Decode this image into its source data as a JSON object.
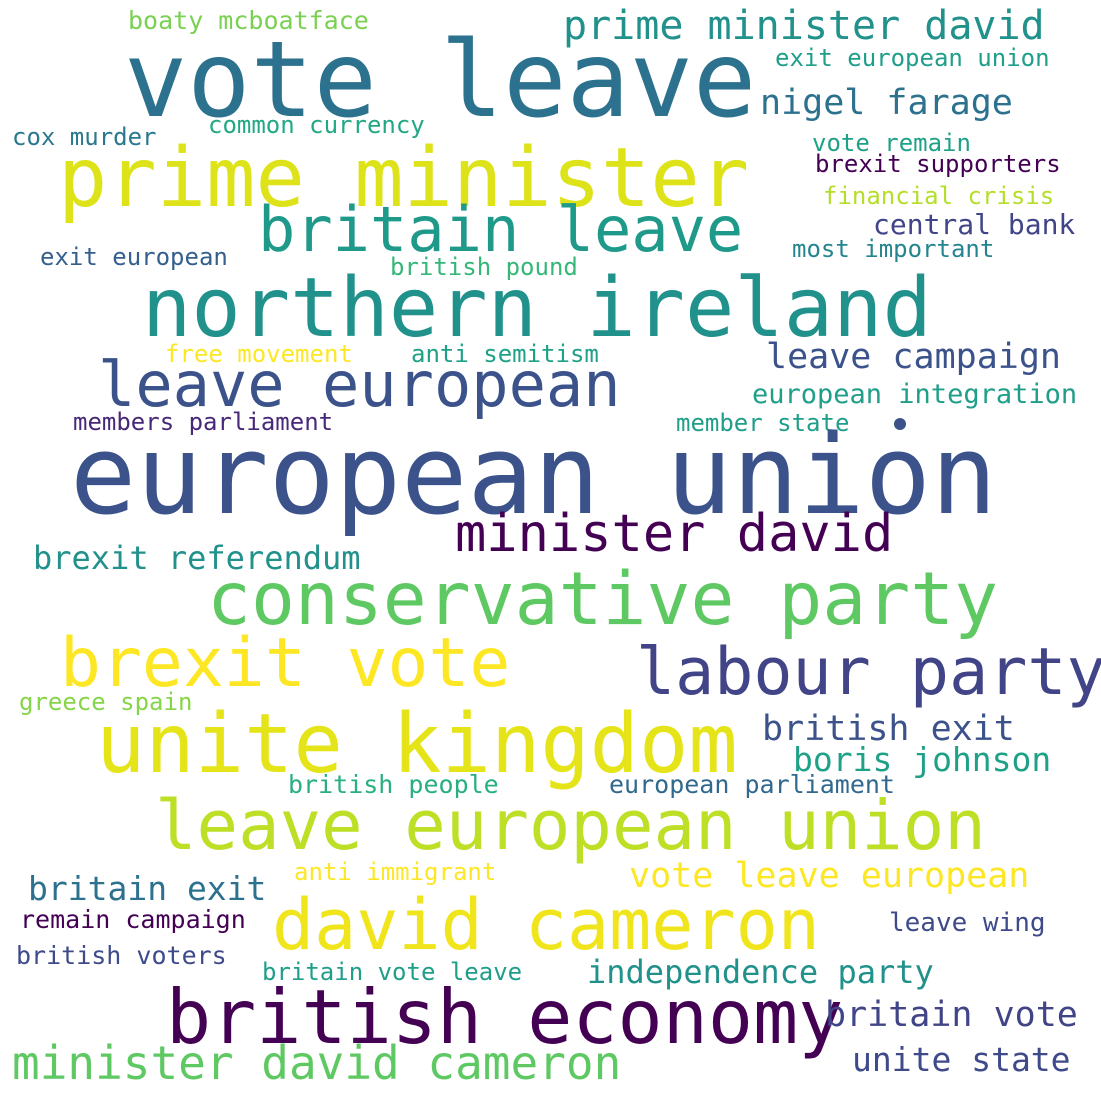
{
  "words": [
    {
      "id": "w00",
      "text": "boaty mcboatface",
      "color": "#7ad151"
    },
    {
      "id": "w01",
      "text": "vote leave",
      "color": "#2c728e"
    },
    {
      "id": "w02",
      "text": "prime minister david",
      "color": "#21918c"
    },
    {
      "id": "w03",
      "text": "exit european union",
      "color": "#1f9e89"
    },
    {
      "id": "w04",
      "text": "nigel farage",
      "color": "#2c728e"
    },
    {
      "id": "w05",
      "text": "cox murder",
      "color": "#2a788e"
    },
    {
      "id": "w06",
      "text": "common currency",
      "color": "#22a884"
    },
    {
      "id": "w07",
      "text": "vote remain",
      "color": "#1fa187"
    },
    {
      "id": "w08",
      "text": "prime minister",
      "color": "#dde318"
    },
    {
      "id": "w09",
      "text": "brexit supporters",
      "color": "#440154"
    },
    {
      "id": "w10",
      "text": "financial crisis",
      "color": "#b5de2b"
    },
    {
      "id": "w11",
      "text": "britain leave",
      "color": "#1f9a8a"
    },
    {
      "id": "w12",
      "text": "central bank",
      "color": "#414487"
    },
    {
      "id": "w13",
      "text": "exit european",
      "color": "#355f8d"
    },
    {
      "id": "w14",
      "text": "most important",
      "color": "#25858e"
    },
    {
      "id": "w15",
      "text": "british pound",
      "color": "#35b779"
    },
    {
      "id": "w16",
      "text": "northern ireland",
      "color": "#21918c"
    },
    {
      "id": "w17",
      "text": "free movement",
      "color": "#fde725"
    },
    {
      "id": "w18",
      "text": "anti semitism",
      "color": "#1fa187"
    },
    {
      "id": "w19",
      "text": "leave campaign",
      "color": "#3b528b"
    },
    {
      "id": "w20",
      "text": "leave european",
      "color": "#3b528b"
    },
    {
      "id": "w21",
      "text": "european integration",
      "color": "#1f9e89"
    },
    {
      "id": "w22",
      "text": "members parliament",
      "color": "#482878"
    },
    {
      "id": "w23",
      "text": "member state",
      "color": "#1f9e89"
    },
    {
      "id": "w24",
      "text": "european union",
      "color": "#3b528b"
    },
    {
      "id": "w25",
      "text": "minister david",
      "color": "#440154"
    },
    {
      "id": "w26",
      "text": "brexit referendum",
      "color": "#21918c"
    },
    {
      "id": "w27",
      "text": "conservative party",
      "color": "#5ec962"
    },
    {
      "id": "w28",
      "text": "brexit vote",
      "color": "#fde725"
    },
    {
      "id": "w29",
      "text": "labour party",
      "color": "#414487"
    },
    {
      "id": "w30",
      "text": "greece spain",
      "color": "#86d549"
    },
    {
      "id": "w31",
      "text": "unite kingdom",
      "color": "#e5e419"
    },
    {
      "id": "w32",
      "text": "british exit",
      "color": "#3b528b"
    },
    {
      "id": "w33",
      "text": "boris johnson",
      "color": "#1fa187"
    },
    {
      "id": "w34",
      "text": "british people",
      "color": "#29af7f"
    },
    {
      "id": "w35",
      "text": "european parliament",
      "color": "#31688e"
    },
    {
      "id": "w36",
      "text": "leave european union",
      "color": "#bddf26"
    },
    {
      "id": "w37",
      "text": "anti immigrant",
      "color": "#fde725"
    },
    {
      "id": "w38",
      "text": "vote leave european",
      "color": "#fde725"
    },
    {
      "id": "w39",
      "text": "britain exit",
      "color": "#2c728e"
    },
    {
      "id": "w40",
      "text": "remain campaign",
      "color": "#440154"
    },
    {
      "id": "w41",
      "text": "david cameron",
      "color": "#f0e51c"
    },
    {
      "id": "w42",
      "text": "leave wing",
      "color": "#3e4a89"
    },
    {
      "id": "w43",
      "text": "british voters",
      "color": "#3e4a89"
    },
    {
      "id": "w44",
      "text": "britain vote leave",
      "color": "#1f9e89"
    },
    {
      "id": "w45",
      "text": "independence party",
      "color": "#21918c"
    },
    {
      "id": "w46",
      "text": "british economy",
      "color": "#440154"
    },
    {
      "id": "w47",
      "text": "britain vote",
      "color": "#414487"
    },
    {
      "id": "w48",
      "text": "minister david cameron",
      "color": "#5ec962"
    },
    {
      "id": "w49",
      "text": "unite state",
      "color": "#3e4a89"
    }
  ]
}
